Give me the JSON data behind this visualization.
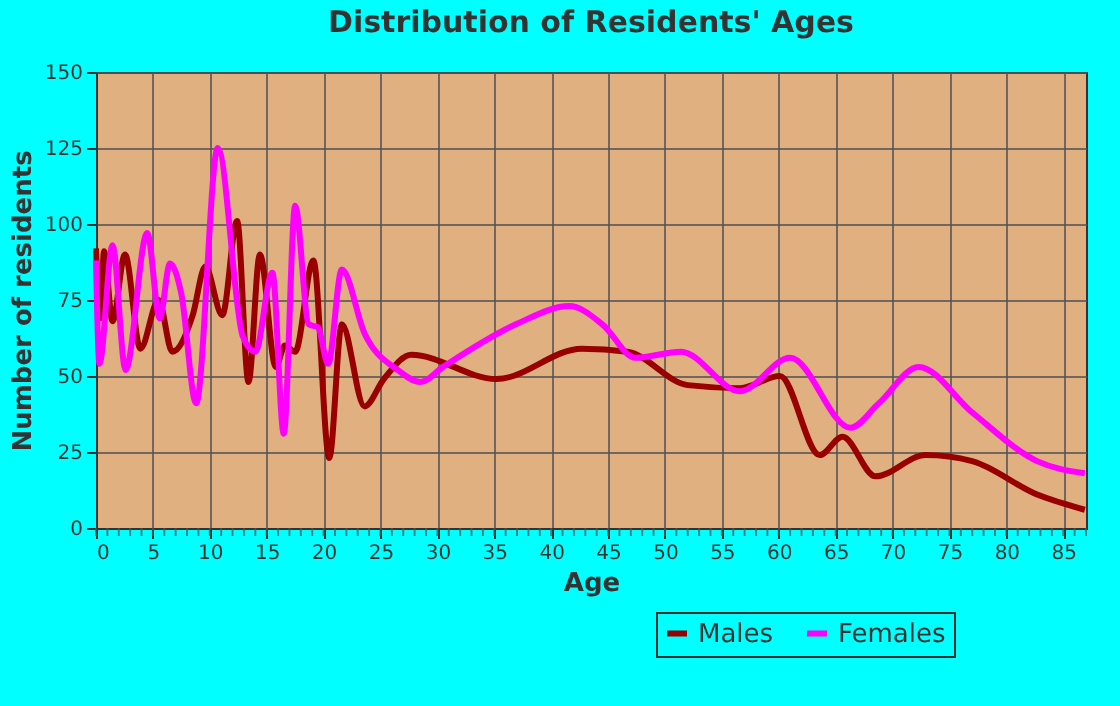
{
  "chart_data": {
    "type": "line",
    "title": "Distribution of Residents' Ages",
    "xlabel": "Age",
    "ylabel": "Number of residents",
    "xlim": [
      0,
      87
    ],
    "xticks": [
      0,
      5,
      10,
      15,
      20,
      25,
      30,
      35,
      40,
      45,
      50,
      55,
      60,
      65,
      70,
      75,
      80,
      85
    ],
    "ylim": [
      0,
      150
    ],
    "yticks": [
      0,
      25,
      50,
      75,
      100,
      125,
      150
    ],
    "grid": true,
    "legend": "bottom right",
    "marker": "none",
    "line_style": "solid",
    "series": [
      {
        "name": "Males",
        "color": "#990000",
        "x": [
          0,
          0.4,
          0.7,
          1.45,
          2.55,
          3.9,
          5.5,
          6.7,
          8.5,
          9.6,
          11.1,
          12.4,
          13.4,
          14.4,
          15.8,
          16.6,
          17.5,
          19.1,
          20.5,
          21.6,
          23.6,
          25.3,
          27.7,
          35.2,
          42.7,
          46.7,
          52,
          56.6,
          60.1,
          63.6,
          65.6,
          68.5,
          72.9,
          77,
          82.7,
          86.9
        ],
        "values": [
          92,
          69,
          91,
          68,
          90,
          59,
          75,
          58,
          70,
          86,
          70,
          101,
          48,
          90,
          53,
          60,
          58,
          88,
          23,
          67,
          40,
          49,
          57,
          49,
          59,
          58,
          47,
          46,
          50,
          24,
          30,
          17,
          24,
          22,
          11,
          6
        ]
      },
      {
        "name": "Females",
        "color": "#ff00ff",
        "x": [
          0,
          0.3,
          1.45,
          2.6,
          4.5,
          5.6,
          6.5,
          7.5,
          8.8,
          10.7,
          12.9,
          14,
          15.5,
          16.5,
          17.5,
          18.7,
          19.5,
          20.4,
          21.6,
          23.6,
          26.5,
          28.5,
          30.5,
          36.9,
          41.6,
          44.5,
          47.4,
          51.4,
          56.6,
          61,
          66.3,
          68.8,
          72.3,
          77,
          82.7,
          86.9
        ],
        "values": [
          88,
          54,
          93,
          52,
          97,
          69,
          87,
          77,
          41,
          125,
          63,
          58,
          84,
          31,
          106,
          67,
          66,
          54,
          85,
          64,
          52,
          48,
          53,
          67,
          73,
          67,
          56,
          58,
          45,
          56,
          33,
          41,
          53,
          38,
          22,
          18
        ]
      }
    ]
  }
}
